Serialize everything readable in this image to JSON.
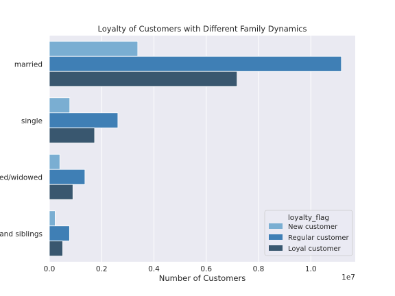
{
  "chart_data": {
    "type": "bar",
    "orientation": "horizontal",
    "title": "Loyalty of Customers with Different Family Dynamics",
    "xlabel": "Number of Customers",
    "ylabel": "",
    "x_scale_note": "1e7",
    "xlim": [
      0,
      11700000
    ],
    "xticks": [
      0.0,
      0.2,
      0.4,
      0.6,
      0.8,
      1.0
    ],
    "xtick_labels": [
      "0.0",
      "0.2",
      "0.4",
      "0.6",
      "0.8",
      "1.0"
    ],
    "categories": [
      "married",
      "single",
      "divorced/widowed",
      "living with parents and siblings"
    ],
    "category_labels": [
      "married",
      "single",
      "ced/widowed",
      "s and siblings"
    ],
    "series": [
      {
        "name": "New customer",
        "color": "#7aaed2",
        "values": [
          3380000,
          780000,
          400000,
          220000
        ]
      },
      {
        "name": "Regular customer",
        "color": "#3f7fb5",
        "values": [
          11170000,
          2620000,
          1360000,
          770000
        ]
      },
      {
        "name": "Loyal customer",
        "color": "#39576f",
        "values": [
          7180000,
          1730000,
          900000,
          510000
        ]
      }
    ],
    "legend": {
      "title": "loyalty_flag",
      "position": "lower-right"
    },
    "grid": true,
    "background": "#eaeaf2"
  }
}
